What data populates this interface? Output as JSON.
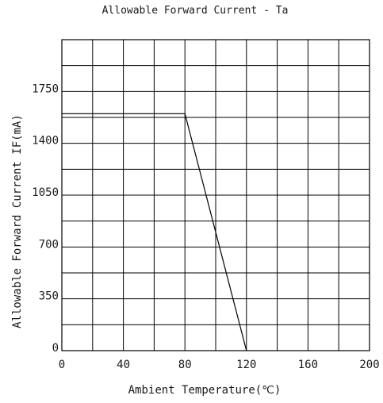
{
  "chart_data": {
    "type": "line",
    "title": "Allowable Forward Current - Ta",
    "xlabel": "Ambient Temperature(℃)",
    "ylabel": "Allowable Forward Current IF(mA)",
    "xlim": [
      0,
      200
    ],
    "ylim": [
      0,
      2100
    ],
    "x_ticks": [
      "0",
      "40",
      "80",
      "120",
      "160",
      "200"
    ],
    "y_ticks": [
      "0",
      "350",
      "700",
      "1050",
      "1400",
      "1750"
    ],
    "x_tick_values": [
      0,
      40,
      80,
      120,
      160,
      200
    ],
    "y_tick_values": [
      0,
      350,
      700,
      1050,
      1400,
      1750
    ],
    "x_grid_step": 20,
    "y_grid_step": 175,
    "grid": true,
    "series": [
      {
        "x": [
          0,
          80,
          120
        ],
        "y": [
          1600,
          1600,
          0
        ]
      }
    ],
    "colors": {
      "line": "#000000",
      "grid": "#000000",
      "text": "#1a1a1a"
    }
  }
}
